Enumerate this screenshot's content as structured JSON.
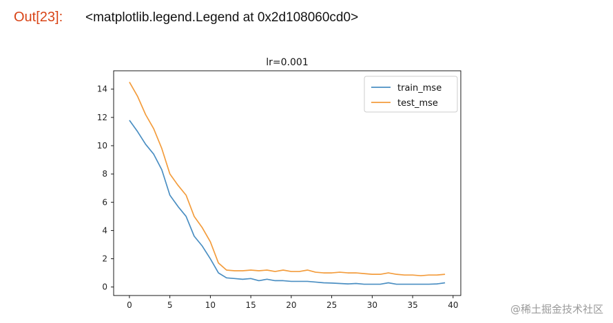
{
  "cell": {
    "prompt": "Out[23]:",
    "output_text": "<matplotlib.legend.Legend at 0x2d108060cd0>"
  },
  "watermark": "@稀土掘金技术社区",
  "colors": {
    "train": "#4a8ec2",
    "test": "#f39c3c",
    "prompt": "#d84315"
  },
  "chart_data": {
    "type": "line",
    "title": "lr=0.001",
    "xlabel": "",
    "ylabel": "",
    "xlim": [
      -1.95,
      40.95
    ],
    "ylim": [
      -0.6,
      15.3
    ],
    "xticks": [
      0,
      5,
      10,
      15,
      20,
      25,
      30,
      35,
      40
    ],
    "yticks": [
      0,
      2,
      4,
      6,
      8,
      10,
      12,
      14
    ],
    "legend_position": "top-right",
    "series": [
      {
        "name": "train_mse",
        "x": [
          0,
          1,
          2,
          3,
          4,
          5,
          6,
          7,
          8,
          9,
          10,
          11,
          12,
          13,
          14,
          15,
          16,
          17,
          18,
          19,
          20,
          21,
          22,
          23,
          24,
          25,
          26,
          27,
          28,
          29,
          30,
          31,
          32,
          33,
          34,
          35,
          36,
          37,
          38,
          39
        ],
        "values": [
          11.8,
          11.0,
          10.1,
          9.4,
          8.3,
          6.5,
          5.7,
          5.0,
          3.6,
          2.9,
          2.0,
          1.0,
          0.65,
          0.6,
          0.55,
          0.6,
          0.45,
          0.55,
          0.45,
          0.45,
          0.4,
          0.4,
          0.4,
          0.35,
          0.3,
          0.28,
          0.25,
          0.22,
          0.25,
          0.2,
          0.2,
          0.2,
          0.3,
          0.2,
          0.2,
          0.2,
          0.2,
          0.2,
          0.22,
          0.3
        ]
      },
      {
        "name": "test_mse",
        "x": [
          0,
          1,
          2,
          3,
          4,
          5,
          6,
          7,
          8,
          9,
          10,
          11,
          12,
          13,
          14,
          15,
          16,
          17,
          18,
          19,
          20,
          21,
          22,
          23,
          24,
          25,
          26,
          27,
          28,
          29,
          30,
          31,
          32,
          33,
          34,
          35,
          36,
          37,
          38,
          39
        ],
        "values": [
          14.5,
          13.5,
          12.2,
          11.2,
          9.8,
          8.0,
          7.2,
          6.5,
          5.0,
          4.2,
          3.2,
          1.7,
          1.2,
          1.15,
          1.15,
          1.2,
          1.15,
          1.2,
          1.1,
          1.2,
          1.1,
          1.1,
          1.2,
          1.05,
          1.0,
          1.0,
          1.05,
          1.0,
          1.0,
          0.95,
          0.9,
          0.9,
          1.0,
          0.9,
          0.85,
          0.85,
          0.8,
          0.85,
          0.85,
          0.9
        ]
      }
    ]
  }
}
